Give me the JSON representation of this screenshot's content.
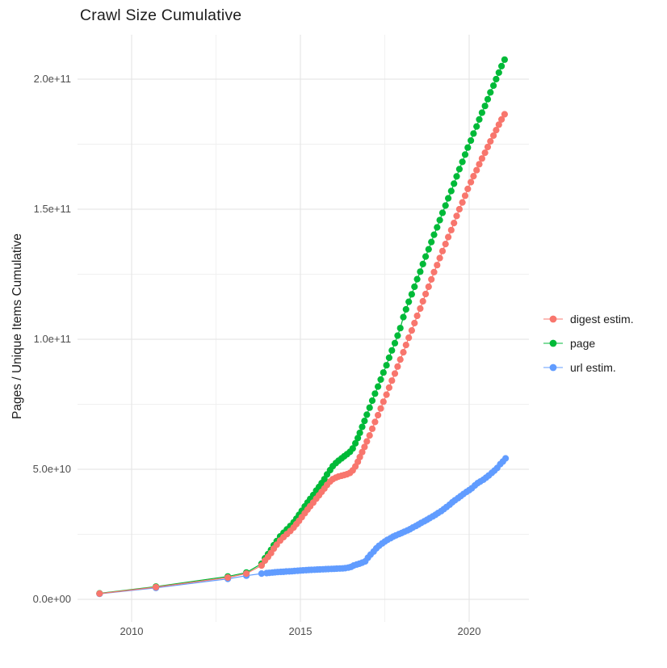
{
  "title": "Crawl Size Cumulative",
  "y_axis_title": "Pages / Unique Items Cumulative",
  "chart_data": {
    "type": "line",
    "title": "Crawl Size Cumulative",
    "xlabel": "",
    "ylabel": "Pages / Unique Items Cumulative",
    "grid": "on",
    "legend_position": "right",
    "x_unit": "year",
    "y_unit": "count (values stored in billions, 1e9)",
    "xlim": [
      2008.4,
      2021.8
    ],
    "ylim_e9": [
      -8,
      217
    ],
    "x_ticks": {
      "major": [
        2010,
        2015,
        2020
      ],
      "minor": [
        2012.5,
        2017.5
      ],
      "labels": [
        "2010",
        "2015",
        "2020"
      ]
    },
    "y_ticks": {
      "major_e9": [
        0,
        50,
        100,
        150,
        200
      ],
      "minor_e9": [
        25,
        75,
        125,
        175
      ],
      "labels": [
        "0.0e+00",
        "5.0e+10",
        "1.0e+11",
        "1.5e+11",
        "2.0e+11"
      ]
    },
    "colors": {
      "grid_major": "#e7e7e7",
      "grid_minor": "#f0f0f0",
      "axis_text": "#4d4d4d",
      "title_text": "#1c1c1c"
    },
    "draw_order": [
      2,
      1,
      0
    ],
    "series": [
      {
        "name": "digest estim.",
        "color": "#F8766D",
        "points": [
          [
            2009.05,
            2.2
          ],
          [
            2010.72,
            4.7
          ],
          [
            2012.85,
            8.4
          ],
          [
            2013.4,
            9.9
          ],
          [
            2013.85,
            13.0
          ],
          [
            2013.95,
            14.9
          ],
          [
            2014.04,
            16.3
          ],
          [
            2014.13,
            17.8
          ],
          [
            2014.21,
            19.5
          ],
          [
            2014.3,
            21.0
          ],
          [
            2014.4,
            22.6
          ],
          [
            2014.5,
            23.9
          ],
          [
            2014.6,
            25.1
          ],
          [
            2014.7,
            26.3
          ],
          [
            2014.8,
            27.6
          ],
          [
            2014.88,
            28.9
          ],
          [
            2014.96,
            30.2
          ],
          [
            2015.04,
            31.6
          ],
          [
            2015.13,
            33.1
          ],
          [
            2015.21,
            34.5
          ],
          [
            2015.29,
            35.8
          ],
          [
            2015.38,
            37.2
          ],
          [
            2015.47,
            38.7
          ],
          [
            2015.55,
            40.0
          ],
          [
            2015.63,
            41.3
          ],
          [
            2015.71,
            42.6
          ],
          [
            2015.79,
            44.0
          ],
          [
            2015.88,
            45.3
          ],
          [
            2015.96,
            46.2
          ],
          [
            2016.05,
            46.8
          ],
          [
            2016.13,
            47.2
          ],
          [
            2016.22,
            47.5
          ],
          [
            2016.3,
            47.8
          ],
          [
            2016.38,
            48.1
          ],
          [
            2016.47,
            48.6
          ],
          [
            2016.55,
            49.6
          ],
          [
            2016.63,
            51.1
          ],
          [
            2016.7,
            52.9
          ],
          [
            2016.76,
            54.7
          ],
          [
            2016.83,
            56.6
          ],
          [
            2016.9,
            58.6
          ],
          [
            2016.97,
            60.7
          ],
          [
            2017.05,
            63.0
          ],
          [
            2017.13,
            65.6
          ],
          [
            2017.21,
            68.2
          ],
          [
            2017.3,
            70.8
          ],
          [
            2017.38,
            73.4
          ],
          [
            2017.46,
            76.0
          ],
          [
            2017.55,
            78.7
          ],
          [
            2017.63,
            81.4
          ],
          [
            2017.71,
            84.1
          ],
          [
            2017.8,
            86.8
          ],
          [
            2017.88,
            89.5
          ],
          [
            2017.96,
            92.2
          ],
          [
            2018.05,
            95.0
          ],
          [
            2018.13,
            97.8
          ],
          [
            2018.21,
            100.6
          ],
          [
            2018.3,
            103.4
          ],
          [
            2018.38,
            106.2
          ],
          [
            2018.46,
            109.0
          ],
          [
            2018.55,
            111.8
          ],
          [
            2018.63,
            114.6
          ],
          [
            2018.71,
            117.4
          ],
          [
            2018.8,
            120.2
          ],
          [
            2018.88,
            123.0
          ],
          [
            2018.96,
            125.8
          ],
          [
            2019.05,
            128.5
          ],
          [
            2019.13,
            131.2
          ],
          [
            2019.21,
            133.9
          ],
          [
            2019.3,
            136.6
          ],
          [
            2019.38,
            139.3
          ],
          [
            2019.47,
            142.0
          ],
          [
            2019.55,
            144.7
          ],
          [
            2019.63,
            147.4
          ],
          [
            2019.71,
            150.0
          ],
          [
            2019.8,
            152.6
          ],
          [
            2019.88,
            155.2
          ],
          [
            2019.96,
            157.8
          ],
          [
            2020.05,
            160.4
          ],
          [
            2020.13,
            162.7
          ],
          [
            2020.22,
            165.0
          ],
          [
            2020.3,
            167.3
          ],
          [
            2020.38,
            169.5
          ],
          [
            2020.47,
            171.7
          ],
          [
            2020.55,
            173.9
          ],
          [
            2020.63,
            176.1
          ],
          [
            2020.72,
            178.3
          ],
          [
            2020.8,
            180.4
          ],
          [
            2020.88,
            182.5
          ],
          [
            2020.96,
            184.5
          ],
          [
            2021.05,
            186.5
          ]
        ]
      },
      {
        "name": "page",
        "color": "#00BA38",
        "points": [
          [
            2009.05,
            2.3
          ],
          [
            2010.72,
            4.9
          ],
          [
            2012.85,
            8.8
          ],
          [
            2013.4,
            10.3
          ],
          [
            2013.85,
            13.7
          ],
          [
            2013.95,
            15.8
          ],
          [
            2014.04,
            17.4
          ],
          [
            2014.13,
            19.0
          ],
          [
            2014.21,
            20.8
          ],
          [
            2014.3,
            22.4
          ],
          [
            2014.4,
            24.2
          ],
          [
            2014.5,
            25.6
          ],
          [
            2014.6,
            26.9
          ],
          [
            2014.7,
            28.2
          ],
          [
            2014.8,
            29.6
          ],
          [
            2014.88,
            31.0
          ],
          [
            2014.96,
            32.5
          ],
          [
            2015.04,
            34.0
          ],
          [
            2015.13,
            35.7
          ],
          [
            2015.21,
            37.2
          ],
          [
            2015.29,
            38.6
          ],
          [
            2015.38,
            40.1
          ],
          [
            2015.47,
            41.8
          ],
          [
            2015.55,
            43.2
          ],
          [
            2015.63,
            44.7
          ],
          [
            2015.71,
            46.2
          ],
          [
            2015.79,
            48.0
          ],
          [
            2015.88,
            49.7
          ],
          [
            2015.96,
            51.2
          ],
          [
            2016.05,
            52.4
          ],
          [
            2016.13,
            53.3
          ],
          [
            2016.22,
            54.2
          ],
          [
            2016.3,
            55.0
          ],
          [
            2016.38,
            55.8
          ],
          [
            2016.47,
            56.7
          ],
          [
            2016.55,
            58.0
          ],
          [
            2016.63,
            60.0
          ],
          [
            2016.7,
            62.0
          ],
          [
            2016.76,
            64.0
          ],
          [
            2016.83,
            66.3
          ],
          [
            2016.9,
            68.6
          ],
          [
            2016.97,
            71.0
          ],
          [
            2017.05,
            73.7
          ],
          [
            2017.13,
            76.4
          ],
          [
            2017.21,
            79.1
          ],
          [
            2017.3,
            81.8
          ],
          [
            2017.38,
            84.5
          ],
          [
            2017.46,
            87.2
          ],
          [
            2017.55,
            90.0
          ],
          [
            2017.63,
            92.9
          ],
          [
            2017.71,
            95.7
          ],
          [
            2017.8,
            98.5
          ],
          [
            2017.88,
            101.4
          ],
          [
            2017.96,
            104.3
          ],
          [
            2018.05,
            108.5
          ],
          [
            2018.13,
            111.5
          ],
          [
            2018.21,
            114.4
          ],
          [
            2018.3,
            117.3
          ],
          [
            2018.38,
            120.2
          ],
          [
            2018.46,
            123.1
          ],
          [
            2018.55,
            126.0
          ],
          [
            2018.63,
            128.9
          ],
          [
            2018.71,
            131.8
          ],
          [
            2018.8,
            134.6
          ],
          [
            2018.88,
            137.4
          ],
          [
            2018.96,
            140.2
          ],
          [
            2019.05,
            143.0
          ],
          [
            2019.13,
            145.8
          ],
          [
            2019.21,
            148.6
          ],
          [
            2019.3,
            151.4
          ],
          [
            2019.38,
            154.2
          ],
          [
            2019.47,
            157.0
          ],
          [
            2019.55,
            159.8
          ],
          [
            2019.63,
            162.6
          ],
          [
            2019.71,
            165.4
          ],
          [
            2019.8,
            168.2
          ],
          [
            2019.88,
            171.0
          ],
          [
            2019.96,
            173.7
          ],
          [
            2020.05,
            176.4
          ],
          [
            2020.13,
            179.1
          ],
          [
            2020.22,
            181.8
          ],
          [
            2020.3,
            184.5
          ],
          [
            2020.38,
            187.1
          ],
          [
            2020.47,
            189.7
          ],
          [
            2020.55,
            192.3
          ],
          [
            2020.63,
            194.9
          ],
          [
            2020.72,
            197.5
          ],
          [
            2020.8,
            200.0
          ],
          [
            2020.88,
            202.5
          ],
          [
            2020.96,
            205.0
          ],
          [
            2021.05,
            207.5
          ]
        ]
      },
      {
        "name": "url estim.",
        "color": "#619CFF",
        "points": [
          [
            2009.05,
            2.1
          ],
          [
            2010.72,
            4.4
          ],
          [
            2012.85,
            7.9
          ],
          [
            2013.4,
            9.1
          ],
          [
            2013.85,
            9.9
          ],
          [
            2014.0,
            10.1
          ],
          [
            2014.08,
            10.2
          ],
          [
            2014.17,
            10.3
          ],
          [
            2014.25,
            10.4
          ],
          [
            2014.33,
            10.5
          ],
          [
            2014.42,
            10.55
          ],
          [
            2014.5,
            10.6
          ],
          [
            2014.58,
            10.7
          ],
          [
            2014.67,
            10.75
          ],
          [
            2014.75,
            10.8
          ],
          [
            2014.83,
            10.9
          ],
          [
            2014.92,
            11.0
          ],
          [
            2015.0,
            11.1
          ],
          [
            2015.08,
            11.15
          ],
          [
            2015.17,
            11.2
          ],
          [
            2015.25,
            11.3
          ],
          [
            2015.33,
            11.35
          ],
          [
            2015.42,
            11.4
          ],
          [
            2015.5,
            11.45
          ],
          [
            2015.58,
            11.5
          ],
          [
            2015.67,
            11.55
          ],
          [
            2015.75,
            11.6
          ],
          [
            2015.83,
            11.65
          ],
          [
            2015.92,
            11.7
          ],
          [
            2016.0,
            11.75
          ],
          [
            2016.08,
            11.8
          ],
          [
            2016.17,
            11.85
          ],
          [
            2016.25,
            11.9
          ],
          [
            2016.33,
            12.0
          ],
          [
            2016.42,
            12.2
          ],
          [
            2016.5,
            12.5
          ],
          [
            2016.58,
            13.0
          ],
          [
            2016.67,
            13.4
          ],
          [
            2016.75,
            13.7
          ],
          [
            2016.83,
            14.1
          ],
          [
            2016.92,
            14.6
          ],
          [
            2017.0,
            16.0
          ],
          [
            2017.08,
            17.2
          ],
          [
            2017.17,
            18.4
          ],
          [
            2017.25,
            19.6
          ],
          [
            2017.33,
            20.6
          ],
          [
            2017.42,
            21.5
          ],
          [
            2017.5,
            22.2
          ],
          [
            2017.58,
            22.9
          ],
          [
            2017.67,
            23.5
          ],
          [
            2017.75,
            24.1
          ],
          [
            2017.83,
            24.6
          ],
          [
            2017.92,
            25.1
          ],
          [
            2018.0,
            25.5
          ],
          [
            2018.08,
            26.0
          ],
          [
            2018.17,
            26.5
          ],
          [
            2018.25,
            27.0
          ],
          [
            2018.33,
            27.6
          ],
          [
            2018.42,
            28.2
          ],
          [
            2018.5,
            28.8
          ],
          [
            2018.58,
            29.4
          ],
          [
            2018.67,
            30.0
          ],
          [
            2018.75,
            30.6
          ],
          [
            2018.83,
            31.2
          ],
          [
            2018.92,
            31.9
          ],
          [
            2019.0,
            32.5
          ],
          [
            2019.08,
            33.2
          ],
          [
            2019.17,
            33.9
          ],
          [
            2019.25,
            34.7
          ],
          [
            2019.33,
            35.5
          ],
          [
            2019.42,
            36.4
          ],
          [
            2019.5,
            37.3
          ],
          [
            2019.58,
            38.1
          ],
          [
            2019.67,
            38.9
          ],
          [
            2019.75,
            39.7
          ],
          [
            2019.83,
            40.5
          ],
          [
            2019.92,
            41.3
          ],
          [
            2020.0,
            42.0
          ],
          [
            2020.08,
            42.7
          ],
          [
            2020.17,
            43.8
          ],
          [
            2020.25,
            44.7
          ],
          [
            2020.33,
            45.3
          ],
          [
            2020.42,
            46.0
          ],
          [
            2020.5,
            46.8
          ],
          [
            2020.58,
            47.6
          ],
          [
            2020.67,
            48.6
          ],
          [
            2020.75,
            49.5
          ],
          [
            2020.83,
            50.5
          ],
          [
            2020.92,
            52.0
          ],
          [
            2021.0,
            53.0
          ],
          [
            2021.08,
            54.2
          ]
        ]
      }
    ]
  },
  "legend": {
    "items": [
      {
        "label": "digest estim.",
        "color": "#F8766D"
      },
      {
        "label": "page",
        "color": "#00BA38"
      },
      {
        "label": "url estim.",
        "color": "#619CFF"
      }
    ]
  }
}
